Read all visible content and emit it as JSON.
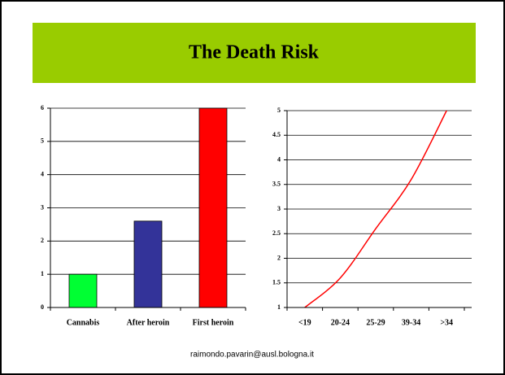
{
  "title": "The Death Risk",
  "footer": "raimondo.pavarin@ausl.bologna.it",
  "chart_data": [
    {
      "type": "bar",
      "categories": [
        "Cannabis",
        "After heroin",
        "First heroin"
      ],
      "values": [
        1,
        2.6,
        6
      ],
      "colors": [
        "#00ff33",
        "#333399",
        "#ff0000"
      ],
      "ylim": [
        0,
        6
      ],
      "yticks": [
        0,
        1,
        2,
        3,
        4,
        5,
        6
      ],
      "grid": true
    },
    {
      "type": "line",
      "categories": [
        "<19",
        "20-24",
        "25-29",
        "39-34",
        ">34"
      ],
      "values": [
        1,
        1.6,
        2.6,
        3.6,
        5
      ],
      "color": "#ff0000",
      "smooth": true,
      "ylim": [
        1,
        5
      ],
      "yticks": [
        1,
        1.5,
        2,
        2.5,
        3,
        3.5,
        4,
        4.5,
        5
      ],
      "grid": true
    }
  ]
}
